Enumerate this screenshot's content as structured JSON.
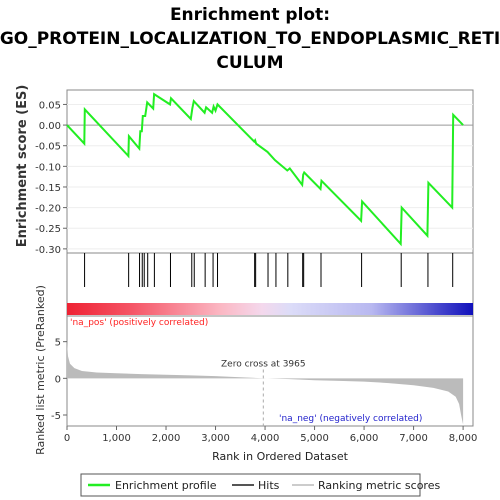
{
  "title_line1": "Enrichment plot:",
  "title_line2": "GO_PROTEIN_LOCALIZATION_TO_ENDOPLASMIC_RETI",
  "title_line3": "CULUM",
  "colors": {
    "enrichment_line": "#22ee22",
    "hits": "#000000",
    "metric_fill": "#bbbbbb",
    "pos_label": "#ff2222",
    "neg_label": "#2222cc"
  },
  "chart_data": [
    {
      "type": "line",
      "name": "enrichment-score",
      "ylabel": "Enrichment score (ES)",
      "xlim": [
        0,
        8200
      ],
      "ylim": [
        -0.31,
        0.085
      ],
      "yticks": [
        "0.05",
        "0.00",
        "-0.05",
        "-0.10",
        "-0.15",
        "-0.20",
        "-0.25",
        "-0.30"
      ],
      "ytick_values": [
        0.05,
        0.0,
        -0.05,
        -0.1,
        -0.15,
        -0.2,
        -0.25,
        -0.3
      ],
      "points": [
        [
          0,
          0.0
        ],
        [
          350,
          -0.045
        ],
        [
          360,
          0.038
        ],
        [
          1240,
          -0.075
        ],
        [
          1250,
          -0.027
        ],
        [
          1460,
          -0.057
        ],
        [
          1480,
          -0.015
        ],
        [
          1510,
          -0.015
        ],
        [
          1530,
          0.022
        ],
        [
          1580,
          0.022
        ],
        [
          1620,
          0.055
        ],
        [
          1740,
          0.04
        ],
        [
          1760,
          0.075
        ],
        [
          2080,
          0.05
        ],
        [
          2100,
          0.065
        ],
        [
          2500,
          0.015
        ],
        [
          2530,
          0.04
        ],
        [
          2560,
          0.058
        ],
        [
          2780,
          0.03
        ],
        [
          2810,
          0.043
        ],
        [
          2930,
          0.03
        ],
        [
          2960,
          0.045
        ],
        [
          3000,
          0.035
        ],
        [
          3040,
          0.05
        ],
        [
          3780,
          -0.04
        ],
        [
          3800,
          -0.037
        ],
        [
          3820,
          -0.045
        ],
        [
          4050,
          -0.065
        ],
        [
          4200,
          -0.085
        ],
        [
          4450,
          -0.11
        ],
        [
          4500,
          -0.105
        ],
        [
          4750,
          -0.145
        ],
        [
          4770,
          -0.12
        ],
        [
          4790,
          -0.115
        ],
        [
          5120,
          -0.155
        ],
        [
          5140,
          -0.135
        ],
        [
          5940,
          -0.232
        ],
        [
          5960,
          -0.185
        ],
        [
          6740,
          -0.288
        ],
        [
          6760,
          -0.2
        ],
        [
          7280,
          -0.268
        ],
        [
          7300,
          -0.14
        ],
        [
          7780,
          -0.2
        ],
        [
          7800,
          0.025
        ],
        [
          8000,
          0.0
        ]
      ]
    },
    {
      "type": "scatter",
      "name": "hits",
      "x": [
        355,
        1245,
        1465,
        1520,
        1560,
        1630,
        1765,
        2090,
        2520,
        2570,
        2790,
        2950,
        3040,
        3790,
        3810,
        4060,
        4220,
        4460,
        4760,
        4780,
        5130,
        5950,
        6750,
        7290,
        7790
      ]
    },
    {
      "type": "area",
      "name": "ranked-list-metric",
      "ylabel": "Ranked list metric (PreRanked)",
      "xlabel": "Rank in Ordered Dataset",
      "xlim": [
        0,
        8200
      ],
      "ylim": [
        -6.5,
        8.5
      ],
      "yticks": [
        "5",
        "0",
        "-5"
      ],
      "ytick_values": [
        5,
        0,
        -5
      ],
      "xticks": [
        "0",
        "1,000",
        "2,000",
        "3,000",
        "4,000",
        "5,000",
        "6,000",
        "7,000",
        "8,000"
      ],
      "xtick_values": [
        0,
        1000,
        2000,
        3000,
        4000,
        5000,
        6000,
        7000,
        8000
      ],
      "points": [
        [
          0,
          5.0
        ],
        [
          20,
          3.0
        ],
        [
          60,
          2.0
        ],
        [
          150,
          1.4
        ],
        [
          300,
          1.0
        ],
        [
          600,
          0.8
        ],
        [
          1000,
          0.7
        ],
        [
          1500,
          0.58
        ],
        [
          2000,
          0.5
        ],
        [
          2500,
          0.4
        ],
        [
          3000,
          0.3
        ],
        [
          3500,
          0.15
        ],
        [
          3965,
          0.0
        ],
        [
          4500,
          -0.1
        ],
        [
          5000,
          -0.25
        ],
        [
          5500,
          -0.35
        ],
        [
          6000,
          -0.45
        ],
        [
          6500,
          -0.65
        ],
        [
          7000,
          -0.95
        ],
        [
          7400,
          -1.3
        ],
        [
          7700,
          -1.8
        ],
        [
          7850,
          -2.5
        ],
        [
          7920,
          -3.5
        ],
        [
          7960,
          -5.0
        ],
        [
          7990,
          -6.0
        ],
        [
          8000,
          -6.3
        ]
      ],
      "zero_cross_label": "Zero cross at 3965",
      "zero_cross_x": 3965,
      "pos_label": "'na_pos' (positively correlated)",
      "neg_label": "'na_neg' (negatively correlated)"
    }
  ],
  "legend": {
    "items": [
      "Enrichment profile",
      "Hits",
      "Ranking metric scores"
    ]
  }
}
